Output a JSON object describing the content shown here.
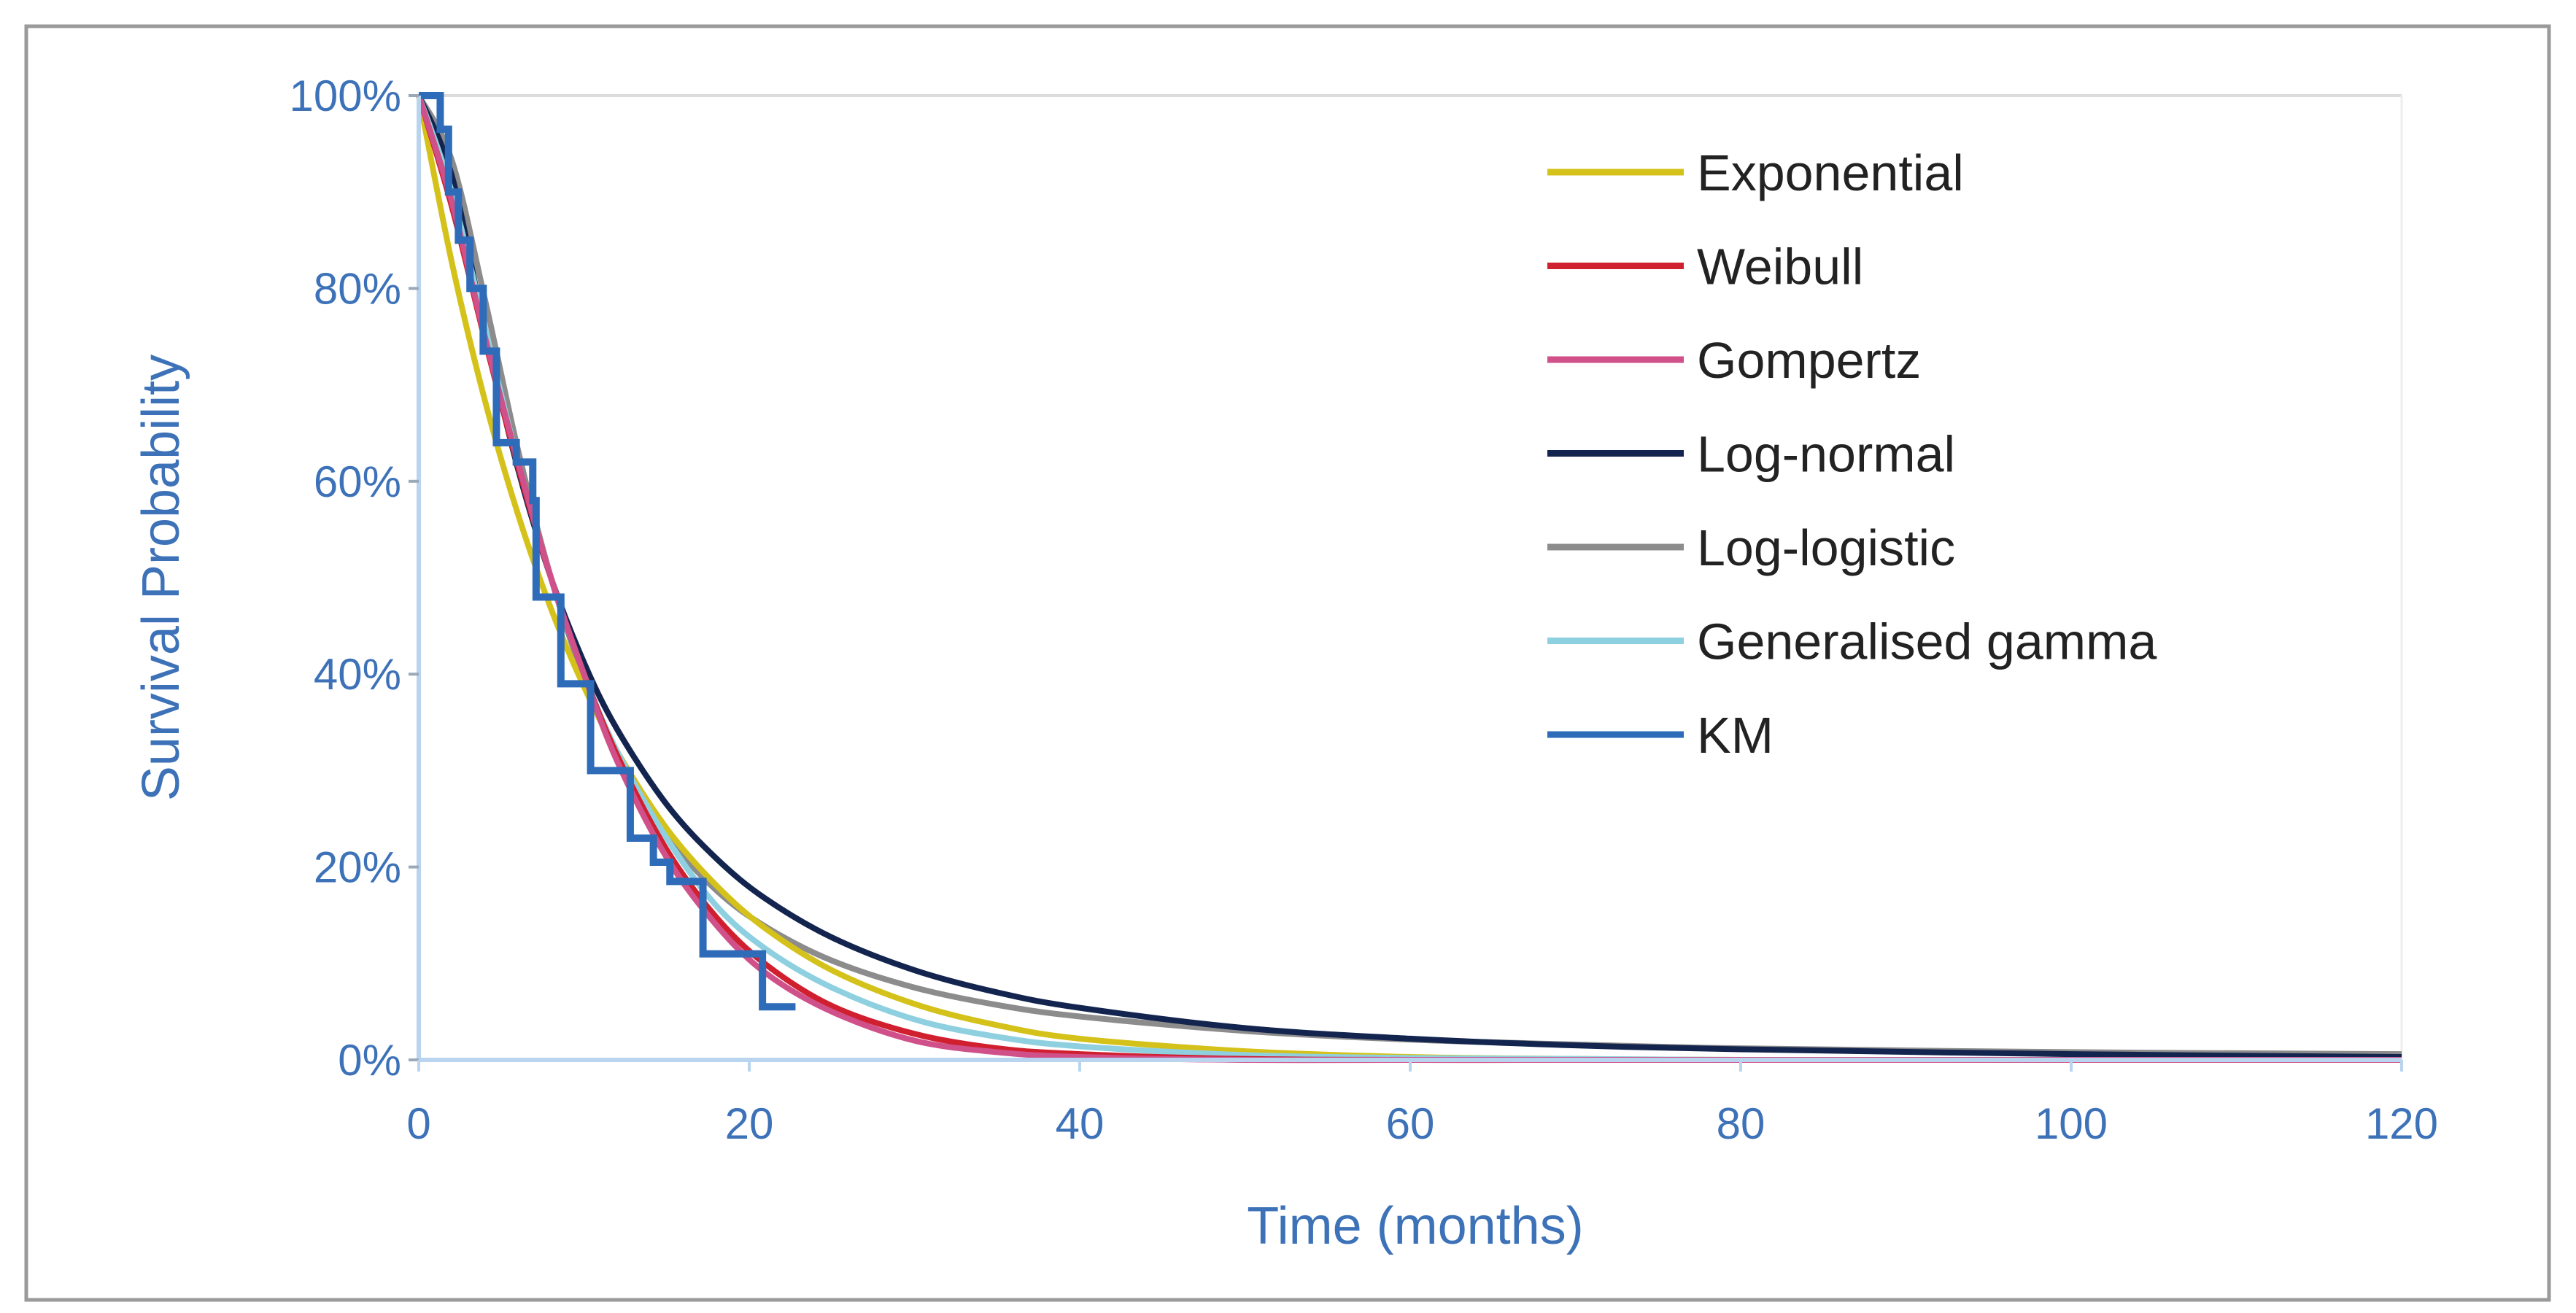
{
  "chart_data": {
    "type": "line",
    "title": "",
    "xlabel": "Time (months)",
    "ylabel": "Survival Probability",
    "xlim": [
      0,
      120
    ],
    "ylim": [
      0,
      1
    ],
    "x_ticks": [
      "0",
      "20",
      "40",
      "60",
      "80",
      "100",
      "120"
    ],
    "y_ticks": [
      "0%",
      "20%",
      "40%",
      "60%",
      "80%",
      "100%"
    ],
    "grid": false,
    "legend_position": "top-right",
    "x": [
      0,
      2,
      4,
      6,
      8,
      10,
      12,
      15,
      18,
      21,
      25,
      30,
      35,
      40,
      50,
      60,
      70,
      80,
      100,
      120
    ],
    "series": [
      {
        "name": "Exponential",
        "color": "#d4c21a",
        "values": [
          1,
          0.827,
          0.684,
          0.566,
          0.468,
          0.387,
          0.32,
          0.24,
          0.181,
          0.136,
          0.093,
          0.058,
          0.036,
          0.022,
          0.009,
          0.003,
          0.001,
          0,
          0,
          0
        ]
      },
      {
        "name": "Weibull",
        "color": "#d02030",
        "values": [
          1,
          0.885,
          0.747,
          0.616,
          0.5,
          0.4,
          0.316,
          0.218,
          0.148,
          0.099,
          0.056,
          0.027,
          0.012,
          0.006,
          0.001,
          0,
          0,
          0,
          0,
          0
        ]
      },
      {
        "name": "Gompertz",
        "color": "#d0508a",
        "values": [
          1,
          0.89,
          0.75,
          0.62,
          0.5,
          0.4,
          0.31,
          0.21,
          0.14,
          0.09,
          0.05,
          0.02,
          0.008,
          0.003,
          0,
          0,
          0,
          0,
          0,
          0
        ]
      },
      {
        "name": "Log-normal",
        "color": "#13254f",
        "values": [
          1,
          0.917,
          0.756,
          0.613,
          0.5,
          0.412,
          0.343,
          0.265,
          0.209,
          0.167,
          0.127,
          0.093,
          0.07,
          0.054,
          0.033,
          0.022,
          0.015,
          0.011,
          0.006,
          0.003
        ]
      },
      {
        "name": "Log-logistic",
        "color": "#8c8c8c",
        "values": [
          1,
          0.933,
          0.789,
          0.633,
          0.5,
          0.396,
          0.316,
          0.233,
          0.176,
          0.138,
          0.103,
          0.075,
          0.057,
          0.045,
          0.03,
          0.021,
          0.016,
          0.012,
          0.008,
          0.006
        ]
      },
      {
        "name": "Generalised gamma",
        "color": "#8fd0e0",
        "values": [
          1,
          0.9,
          0.76,
          0.62,
          0.5,
          0.4,
          0.32,
          0.23,
          0.16,
          0.115,
          0.075,
          0.042,
          0.024,
          0.014,
          0.005,
          0.002,
          0.001,
          0,
          0,
          0
        ]
      }
    ],
    "km": {
      "name": "KM",
      "color": "#2e6bb8",
      "step_times": [
        0,
        1.3,
        1.8,
        2.4,
        3.1,
        3.9,
        4.7,
        5.9,
        6.9,
        7.1,
        8.6,
        10.4,
        12.8,
        14.2,
        15.2,
        17.2,
        20.8
      ],
      "step_values": [
        1,
        0.965,
        0.9,
        0.85,
        0.8,
        0.735,
        0.64,
        0.62,
        0.58,
        0.48,
        0.39,
        0.3,
        0.23,
        0.205,
        0.185,
        0.11,
        0.055
      ],
      "end_time": 22.8
    }
  }
}
